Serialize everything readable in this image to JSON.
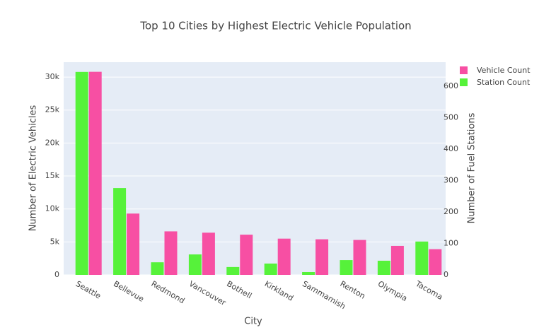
{
  "chart_data": {
    "type": "bar",
    "title": "Top 10 Cities by Highest Electric Vehicle Population",
    "x_label": "City",
    "y_label": "Number of Electric Vehicles",
    "y2_label": "Number of Fuel Stations",
    "categories": [
      "Seattle",
      "Bellevue",
      "Redmond",
      "Vancouver",
      "Bothell",
      "Kirkland",
      "Sammamish",
      "Renton",
      "Olympia",
      "Tacoma"
    ],
    "series": [
      {
        "name": "Vehicle Count",
        "color": "#f74fa3",
        "values": [
          30800,
          9300,
          6600,
          6400,
          6100,
          5500,
          5400,
          5300,
          4400,
          3900
        ]
      },
      {
        "name": "Station Count",
        "color": "#56f23a",
        "axis": "y2",
        "values": [
          645,
          276,
          40,
          65,
          25,
          36,
          9,
          47,
          45,
          106
        ]
      }
    ],
    "ylim": [
      0,
      32260
    ],
    "yticks": [
      0,
      {
        "value": 5000,
        "label": "5k"
      },
      {
        "value": 10000,
        "label": "10k"
      },
      {
        "value": 15000,
        "label": "15k"
      },
      {
        "value": 20000,
        "label": "20k"
      },
      {
        "value": 25000,
        "label": "25k"
      },
      {
        "value": 30000,
        "label": "30k"
      }
    ],
    "y2lim": [
      0,
      676
    ],
    "y2ticks": [
      0,
      100,
      200,
      300,
      400,
      500,
      600
    ],
    "grid": true,
    "legend": "top-right"
  }
}
